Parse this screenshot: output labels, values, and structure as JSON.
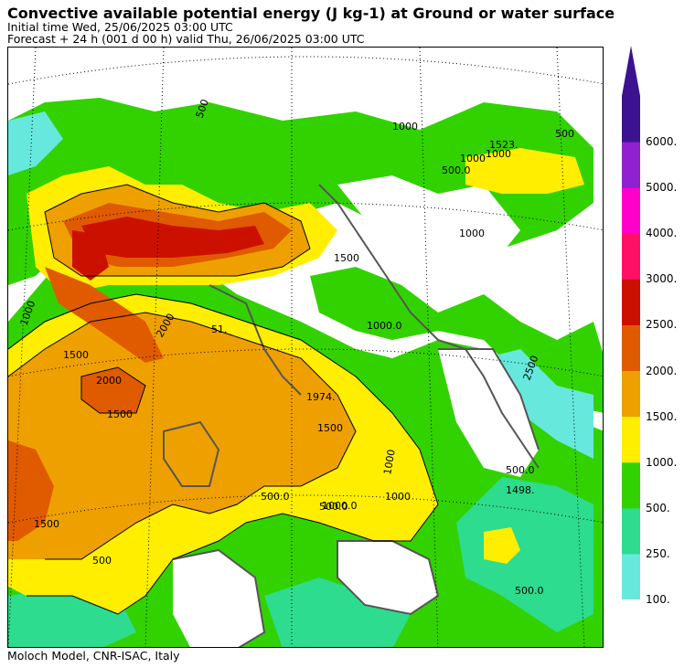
{
  "header": {
    "title": "Convective available potential energy (J kg-1) at Ground or water surface",
    "initial_time": "Initial time  Wed, 25/06/2025  03:00 UTC",
    "forecast": "Forecast  +  24 h  (001 d 00 h)  valid Thu, 26/06/2025 03:00 UTC"
  },
  "footer": {
    "credit": "Moloch Model, CNR-ISAC, Italy"
  },
  "colorbar": {
    "levels": [
      {
        "label": "100.",
        "color": "#66e8dc"
      },
      {
        "label": "250.",
        "color": "#2ddc8e"
      },
      {
        "label": "500.",
        "color": "#32d200"
      },
      {
        "label": "1000.",
        "color": "#ffee00"
      },
      {
        "label": "1500.",
        "color": "#eea000"
      },
      {
        "label": "2000.",
        "color": "#e05a00"
      },
      {
        "label": "2500.",
        "color": "#cc1000"
      },
      {
        "label": "3000.",
        "color": "#ff1066"
      },
      {
        "label": "4000.",
        "color": "#ff00cc"
      },
      {
        "label": "5000.",
        "color": "#9020d0"
      },
      {
        "label": "6000.",
        "color": "#3c1290"
      }
    ]
  },
  "contour_labels": [
    "1000",
    "1500",
    "2000",
    "1500",
    "1500",
    "500",
    "500.0",
    "1974.",
    "1500",
    "1000",
    "500.0",
    "1000",
    "500.0",
    "1498.",
    "500.0",
    "2500",
    "1000",
    "1000",
    "500.0",
    "1000",
    "500",
    "1523.",
    "1000",
    "1000.0",
    "1500",
    "1000.0",
    "51.",
    "2000",
    "500"
  ]
}
